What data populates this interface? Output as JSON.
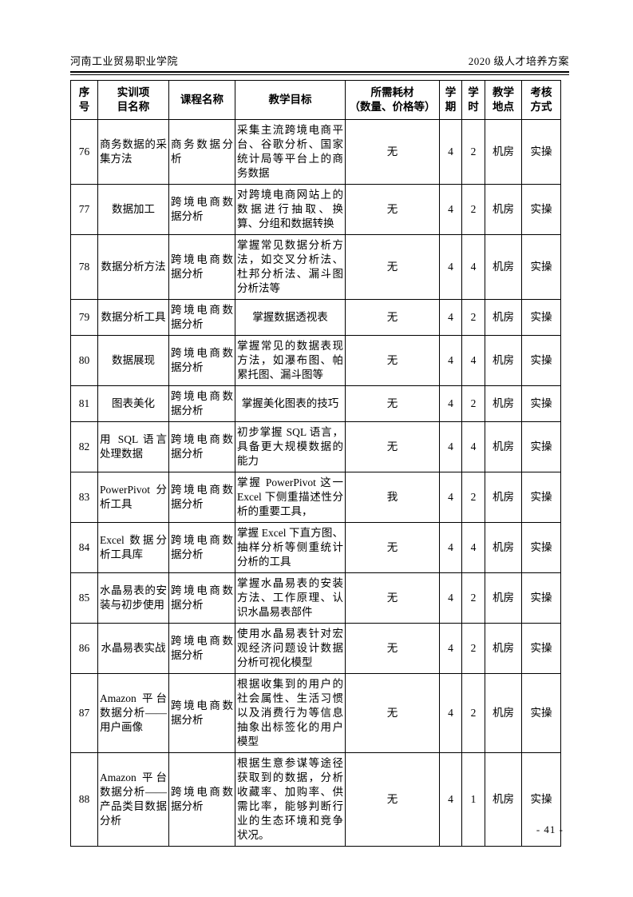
{
  "page_header": {
    "school": "河南工业贸易职业学院",
    "plan": "2020 级人才培养方案"
  },
  "table": {
    "headers": [
      {
        "key": "no",
        "label": "序\n号"
      },
      {
        "key": "name",
        "label": "实训项\n目名称"
      },
      {
        "key": "course",
        "label": "课程名称"
      },
      {
        "key": "objective",
        "label": "教学目标"
      },
      {
        "key": "consumables",
        "label": "所需耗材\n（数量、价格等）"
      },
      {
        "key": "semester",
        "label": "学\n期"
      },
      {
        "key": "hours",
        "label": "学\n时"
      },
      {
        "key": "location",
        "label": "教学\n地点"
      },
      {
        "key": "assessment",
        "label": "考核\n方式"
      }
    ],
    "rows": [
      {
        "no": "76",
        "name": "商务数据的采集方法",
        "course": "商务数据分析",
        "objective": "采集主流跨境电商平台、谷歌分析、国家统计局等平台上的商务数据",
        "consumables": "无",
        "semester": "4",
        "hours": "2",
        "location": "机房",
        "assessment": "实操"
      },
      {
        "no": "77",
        "name": "数据加工",
        "course": "跨境电商数据分析",
        "objective": "对跨境电商网站上的数据进行抽取、换算、分组和数据转换",
        "consumables": "无",
        "semester": "4",
        "hours": "2",
        "location": "机房",
        "assessment": "实操"
      },
      {
        "no": "78",
        "name": "数据分析方法",
        "course": "跨境电商数据分析",
        "objective": "掌握常见数据分析方法，如交叉分析法、杜邦分析法、漏斗图分析法等",
        "consumables": "无",
        "semester": "4",
        "hours": "4",
        "location": "机房",
        "assessment": "实操"
      },
      {
        "no": "79",
        "name": "数据分析工具",
        "course": "跨境电商数据分析",
        "objective": "掌握数据透视表",
        "consumables": "无",
        "semester": "4",
        "hours": "2",
        "location": "机房",
        "assessment": "实操"
      },
      {
        "no": "80",
        "name": "数据展现",
        "course": "跨境电商数据分析",
        "objective": "掌握常见的数据表现方法，如瀑布图、帕累托图、漏斗图等",
        "consumables": "无",
        "semester": "4",
        "hours": "4",
        "location": "机房",
        "assessment": "实操"
      },
      {
        "no": "81",
        "name": "图表美化",
        "course": "跨境电商数据分析",
        "objective": "掌握美化图表的技巧",
        "consumables": "无",
        "semester": "4",
        "hours": "2",
        "location": "机房",
        "assessment": "实操"
      },
      {
        "no": "82",
        "name": "用 SQL 语言处理数据",
        "course": "跨境电商数据分析",
        "objective": "初步掌握 SQL 语言，具备更大规模数据的能力",
        "consumables": "无",
        "semester": "4",
        "hours": "4",
        "location": "机房",
        "assessment": "实操"
      },
      {
        "no": "83",
        "name": "PowerPivot 分析工具",
        "course": "跨境电商数据分析",
        "objective": "掌握 PowerPivot 这一 Excel 下侧重描述性分析的重要工具，",
        "consumables": "我",
        "semester": "4",
        "hours": "2",
        "location": "机房",
        "assessment": "实操"
      },
      {
        "no": "84",
        "name": "Excel 数据分析工具库",
        "course": "跨境电商数据分析",
        "objective": "掌握 Excel 下直方图、抽样分析等侧重统计分析的工具",
        "consumables": "无",
        "semester": "4",
        "hours": "4",
        "location": "机房",
        "assessment": "实操"
      },
      {
        "no": "85",
        "name": "水晶易表的安装与初步使用",
        "course": "跨境电商数据分析",
        "objective": "掌握水晶易表的安装方法、工作原理、认识水晶易表部件",
        "consumables": "无",
        "semester": "4",
        "hours": "2",
        "location": "机房",
        "assessment": "实操"
      },
      {
        "no": "86",
        "name": "水晶易表实战",
        "course": "跨境电商数据分析",
        "objective": "使用水晶易表针对宏观经济问题设计数据分析可视化模型",
        "consumables": "无",
        "semester": "4",
        "hours": "2",
        "location": "机房",
        "assessment": "实操"
      },
      {
        "no": "87",
        "name": "Amazon 平台数据分析——用户画像",
        "course": "跨境电商数据分析",
        "objective": "根据收集到的用户的社会属性、生活习惯以及消费行为等信息抽象出标签化的用户模型",
        "consumables": "无",
        "semester": "4",
        "hours": "2",
        "location": "机房",
        "assessment": "实操"
      },
      {
        "no": "88",
        "name": "Amazon 平台数据分析——产品类目数据分析",
        "course": "跨境电商数据分析",
        "objective": "根据生意参谋等途径获取到的数据，分析收藏率、加购率、供需比率，能够判断行业的生态环境和竞争状况。",
        "consumables": "无",
        "semester": "4",
        "hours": "1",
        "location": "机房",
        "assessment": "实操"
      }
    ]
  },
  "page_footer": {
    "page_number": "- 41 -"
  }
}
